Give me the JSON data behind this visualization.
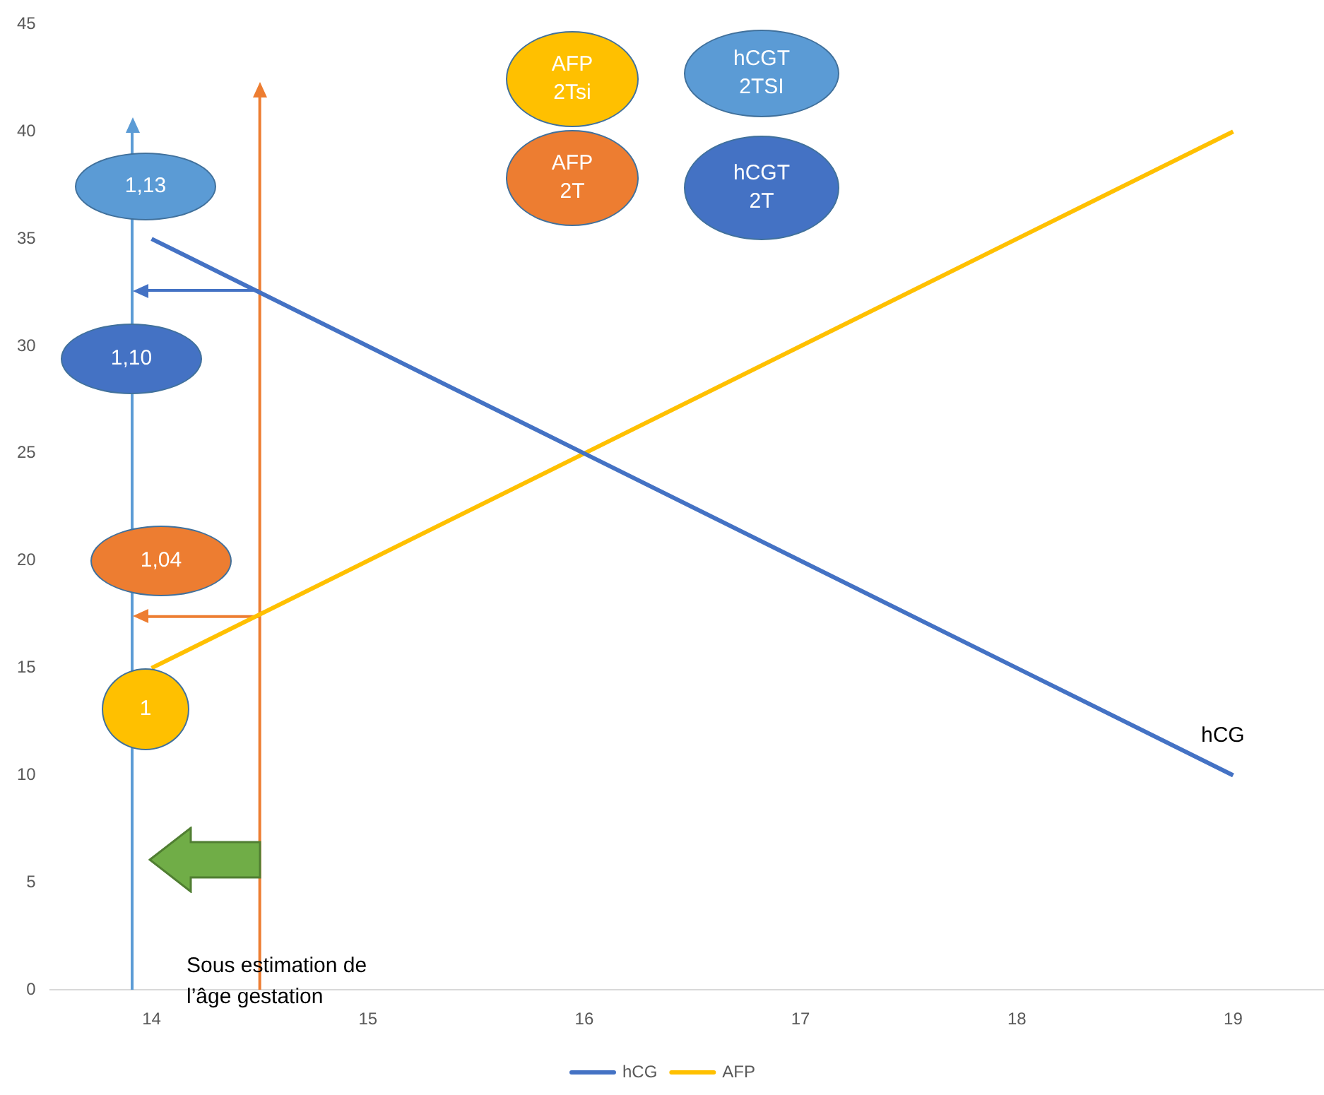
{
  "chart_data": {
    "type": "line",
    "xlim": [
      13.53,
      19.42
    ],
    "xticks": [
      14,
      15,
      16,
      17,
      18,
      19
    ],
    "ylim": [
      0,
      45
    ],
    "yticks": [
      0,
      5,
      10,
      15,
      20,
      25,
      30,
      35,
      40,
      45
    ],
    "grid": false,
    "legend": "bottom",
    "x": [
      14,
      15,
      16,
      17,
      18,
      19
    ],
    "series": [
      {
        "name": "hCG",
        "color": "#4472c4",
        "values": [
          35,
          30,
          25,
          20,
          15,
          10
        ]
      },
      {
        "name": "AFP",
        "color": "#ffc000",
        "values": [
          15,
          20,
          25,
          30,
          35,
          40
        ]
      },
      {
        "color": "#5b9bd5",
        "x": [
          13.91,
          13.91
        ],
        "values": [
          0,
          40.3
        ]
      },
      {
        "color": "#ed7d31",
        "x": [
          14.5,
          14.5
        ],
        "values": [
          0,
          41.9
        ]
      },
      {
        "color": "#4472c4",
        "x": [
          14.5,
          13.95
        ],
        "values": [
          32.6,
          32.6
        ]
      },
      {
        "color": "#ed7d31",
        "x": [
          14.5,
          13.95
        ],
        "values": [
          17.4,
          17.4
        ]
      }
    ],
    "annotations": [
      "1,13",
      "1,10",
      "1,04",
      "1",
      "AFP 2Tsi",
      "hCGT 2TSI",
      "AFP 2T",
      "hCGT 2T",
      "hCG",
      "Sous estimation de l’âge gestation"
    ]
  }
}
